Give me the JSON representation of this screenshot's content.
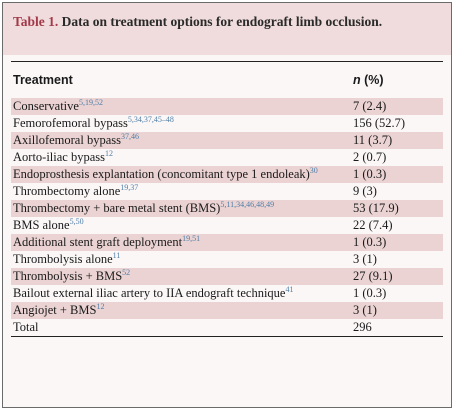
{
  "caption": {
    "label": "Table 1.",
    "text": "Data on treatment options for endograft limb occlusion."
  },
  "header": {
    "treatment": "Treatment",
    "n_letter": "n",
    "n_rest": " (%)"
  },
  "rows": [
    {
      "name": "Conservative",
      "refs": "5,19,52",
      "value": "7 (2.4)"
    },
    {
      "name": "Femorofemoral bypass",
      "refs": "5,34,37,45–48",
      "value": "156 (52.7)"
    },
    {
      "name": "Axillofemoral bypass",
      "refs": "37,46",
      "value": "11 (3.7)"
    },
    {
      "name": "Aorto-iliac bypass",
      "refs": "12",
      "value": "2 (0.7)"
    },
    {
      "name": "Endoprosthesis explantation (concomitant type 1 endoleak)",
      "refs": "30",
      "value": "1 (0.3)"
    },
    {
      "name": "Thrombectomy alone",
      "refs": "19,37",
      "value": "9 (3)"
    },
    {
      "name": "Thrombectomy + bare metal stent (BMS)",
      "refs": "5,11,34,46,48,49",
      "value": "53 (17.9)"
    },
    {
      "name": "BMS alone",
      "refs": "5,50",
      "value": "22 (7.4)"
    },
    {
      "name": "Additional stent graft deployment",
      "refs": "19,51",
      "value": "1 (0.3)"
    },
    {
      "name": "Thrombolysis alone",
      "refs": "11",
      "value": "3 (1)"
    },
    {
      "name": "Thrombolysis + BMS",
      "refs": "52",
      "value": "27 (9.1)"
    },
    {
      "name": "Bailout external iliac artery to IIA endograft technique",
      "refs": "41",
      "value": "1 (0.3)"
    },
    {
      "name": "Angiojet + BMS",
      "refs": "12",
      "value": "3 (1)"
    },
    {
      "name": "Total",
      "refs": "",
      "value": "296"
    }
  ]
}
